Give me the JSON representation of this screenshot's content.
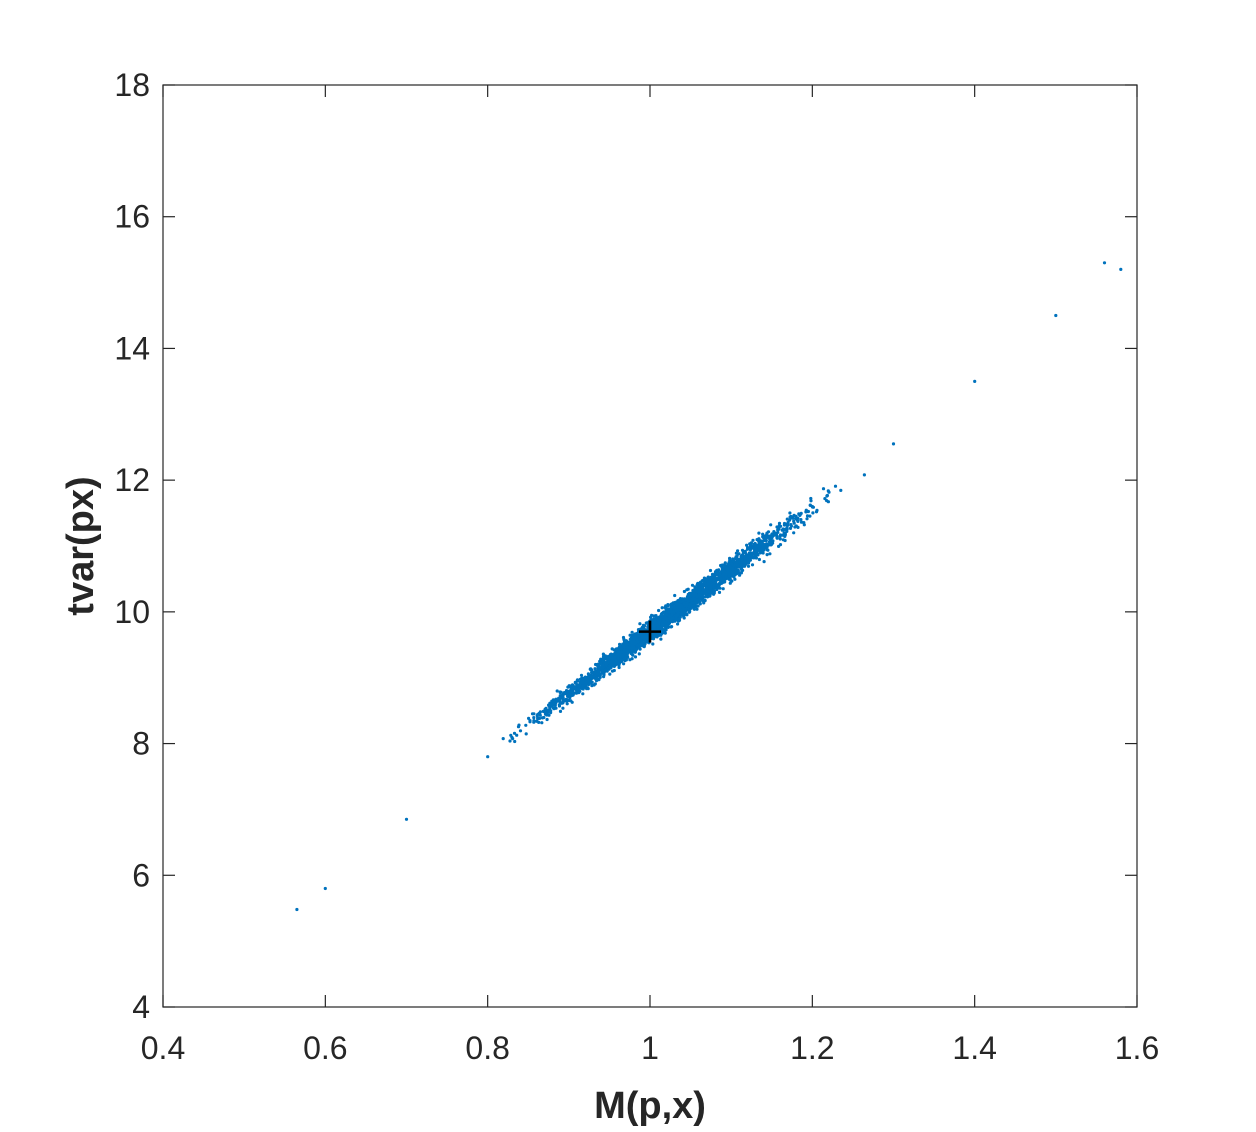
{
  "chart_data": {
    "type": "scatter",
    "xlabel": "M(p,x)",
    "ylabel": "tvar(px)",
    "xlim": [
      0.4,
      1.6
    ],
    "ylim": [
      4,
      18
    ],
    "xticks": [
      0.4,
      0.6,
      0.8,
      1,
      1.2,
      1.4,
      1.6
    ],
    "xtick_labels": [
      "0.4",
      "0.6",
      "0.8",
      "1",
      "1.2",
      "1.4",
      "1.6"
    ],
    "yticks": [
      4,
      6,
      8,
      10,
      12,
      14,
      16,
      18
    ],
    "ytick_labels": [
      "4",
      "6",
      "8",
      "10",
      "12",
      "14",
      "16",
      "18"
    ],
    "grid": false,
    "box": true,
    "series": [
      {
        "marker": "dot",
        "color": "#0072BD",
        "trend": {
          "slope": 9.5,
          "intercept": 0.2
        },
        "x_range": [
          0.565,
          1.58
        ],
        "sample_points": [
          [
            0.565,
            5.48
          ],
          [
            0.6,
            5.8
          ],
          [
            0.7,
            6.85
          ],
          [
            0.8,
            7.8
          ],
          [
            0.9,
            8.75
          ],
          [
            1.0,
            9.7
          ],
          [
            1.1,
            10.65
          ],
          [
            1.2,
            11.6
          ],
          [
            1.3,
            12.55
          ],
          [
            1.4,
            13.5
          ],
          [
            1.5,
            14.5
          ],
          [
            1.56,
            15.3
          ],
          [
            1.58,
            15.2
          ]
        ],
        "color_name": "matlab-blue"
      },
      {
        "marker": "plus",
        "color": "#000000",
        "points": [
          [
            1.0,
            9.7
          ]
        ]
      }
    ]
  }
}
